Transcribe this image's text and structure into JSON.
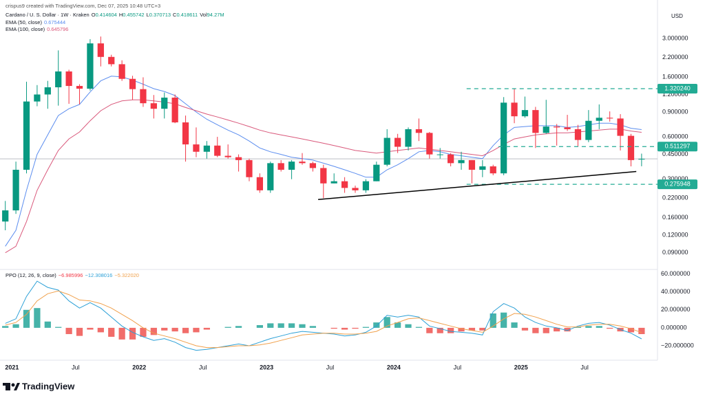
{
  "header": {
    "created": "crispus9 created with TradingView.com, Dec 07, 2025 10:48 UTC+3"
  },
  "footer": {
    "brand": "TradingView"
  },
  "chart_data": [
    {
      "type": "candlestick",
      "title": "Cardano / U. S. Dollar · 1W · Kraken",
      "ohlc_header": [
        {
          "label": "O",
          "value": "0.414604"
        },
        {
          "label": "H",
          "value": "0.455742"
        },
        {
          "label": "L",
          "value": "0.370713"
        },
        {
          "label": "C",
          "value": "0.418611"
        },
        {
          "label": "Vol",
          "value": "94.27M"
        }
      ],
      "y_axis_label": "USD",
      "log_scale": true,
      "grid": false,
      "up_color": "#089981",
      "down_color": "#f23645",
      "xlim": [
        "2020-12",
        "2026-02"
      ],
      "xticks": [
        {
          "value": "2021-01",
          "label": "2021"
        },
        {
          "value": "2021-07",
          "label": "Jul"
        },
        {
          "value": "2022-01",
          "label": "2022"
        },
        {
          "value": "2022-07",
          "label": "Jul"
        },
        {
          "value": "2023-01",
          "label": "2023"
        },
        {
          "value": "2023-07",
          "label": "Jul"
        },
        {
          "value": "2024-01",
          "label": "2024"
        },
        {
          "value": "2024-07",
          "label": "Jul"
        },
        {
          "value": "2025-01",
          "label": "2025"
        },
        {
          "value": "2025-07",
          "label": "Jul"
        }
      ],
      "ylim": [
        0.07,
        4.5
      ],
      "yticks": [
        {
          "value": 3.0,
          "label": "3.000000"
        },
        {
          "value": 2.2,
          "label": "2.200000"
        },
        {
          "value": 1.6,
          "label": "1.600000"
        },
        {
          "value": 1.2,
          "label": "1.200000"
        },
        {
          "value": 0.9,
          "label": "0.900000"
        },
        {
          "value": 0.6,
          "label": "0.600000"
        },
        {
          "value": 0.45,
          "label": "0.450000"
        },
        {
          "value": 0.3,
          "label": "0.300000"
        },
        {
          "value": 0.22,
          "label": "0.220000"
        },
        {
          "value": 0.16,
          "label": "0.160000"
        },
        {
          "value": 0.12,
          "label": "0.120000"
        },
        {
          "value": 0.09,
          "label": "0.090000"
        }
      ],
      "x": [
        "2020-12",
        "2021-01",
        "2021-02",
        "2021-03",
        "2021-04",
        "2021-05",
        "2021-06",
        "2021-07",
        "2021-08",
        "2021-09",
        "2021-10",
        "2021-11",
        "2021-12",
        "2022-01",
        "2022-02",
        "2022-03",
        "2022-04",
        "2022-05",
        "2022-06",
        "2022-07",
        "2022-08",
        "2022-09",
        "2022-10",
        "2022-11",
        "2022-12",
        "2023-01",
        "2023-02",
        "2023-03",
        "2023-04",
        "2023-05",
        "2023-06",
        "2023-07",
        "2023-08",
        "2023-09",
        "2023-10",
        "2023-11",
        "2023-12",
        "2024-01",
        "2024-02",
        "2024-03",
        "2024-04",
        "2024-05",
        "2024-06",
        "2024-07",
        "2024-08",
        "2024-09",
        "2024-10",
        "2024-11",
        "2024-12",
        "2025-01",
        "2025-02",
        "2025-03",
        "2025-04",
        "2025-05",
        "2025-06",
        "2025-07",
        "2025-08",
        "2025-09",
        "2025-10",
        "2025-11",
        "2025-12"
      ],
      "open": [
        0.15,
        0.18,
        0.35,
        1.07,
        1.2,
        1.35,
        1.75,
        1.38,
        1.32,
        2.77,
        2.22,
        1.97,
        1.55,
        1.31,
        1.04,
        0.95,
        1.14,
        0.76,
        0.53,
        0.47,
        0.52,
        0.44,
        0.43,
        0.41,
        0.31,
        0.25,
        0.39,
        0.35,
        0.4,
        0.39,
        0.36,
        0.28,
        0.29,
        0.26,
        0.25,
        0.29,
        0.38,
        0.59,
        0.51,
        0.68,
        0.64,
        0.45,
        0.45,
        0.39,
        0.41,
        0.35,
        0.37,
        0.33,
        1.05,
        0.84,
        0.93,
        0.64,
        0.71,
        0.7,
        0.68,
        0.57,
        0.78,
        0.82,
        0.81,
        0.61,
        0.414604
      ],
      "high": [
        0.21,
        0.4,
        1.48,
        1.4,
        1.5,
        2.47,
        1.8,
        1.42,
        2.97,
        3.1,
        2.3,
        2.1,
        1.63,
        1.59,
        1.19,
        1.24,
        1.2,
        0.85,
        0.7,
        0.56,
        0.6,
        0.53,
        0.45,
        0.42,
        0.33,
        0.4,
        0.41,
        0.41,
        0.46,
        0.4,
        0.38,
        0.33,
        0.31,
        0.27,
        0.3,
        0.4,
        0.68,
        0.63,
        0.7,
        0.81,
        0.65,
        0.5,
        0.46,
        0.47,
        0.41,
        0.41,
        0.38,
        1.15,
        1.32,
        1.16,
        0.98,
        1.1,
        0.74,
        0.86,
        0.73,
        0.93,
        1.02,
        0.91,
        0.87,
        0.63,
        0.455742
      ],
      "low": [
        0.13,
        0.17,
        0.33,
        0.99,
        0.95,
        1.0,
        1.03,
        1.02,
        1.28,
        1.9,
        1.9,
        1.5,
        1.1,
        0.98,
        0.81,
        0.81,
        0.75,
        0.4,
        0.43,
        0.42,
        0.43,
        0.42,
        0.34,
        0.29,
        0.24,
        0.24,
        0.34,
        0.3,
        0.38,
        0.34,
        0.22,
        0.28,
        0.24,
        0.24,
        0.24,
        0.29,
        0.37,
        0.46,
        0.48,
        0.56,
        0.42,
        0.42,
        0.37,
        0.35,
        0.28,
        0.31,
        0.32,
        0.32,
        0.75,
        0.82,
        0.5,
        0.63,
        0.52,
        0.66,
        0.51,
        0.55,
        0.68,
        0.77,
        0.48,
        0.37,
        0.370713
      ],
      "close": [
        0.18,
        0.35,
        1.07,
        1.2,
        1.35,
        1.75,
        1.38,
        1.32,
        2.77,
        2.22,
        1.97,
        1.55,
        1.31,
        1.04,
        0.95,
        1.14,
        0.76,
        0.53,
        0.47,
        0.52,
        0.44,
        0.43,
        0.41,
        0.31,
        0.25,
        0.39,
        0.35,
        0.4,
        0.39,
        0.36,
        0.28,
        0.29,
        0.26,
        0.25,
        0.29,
        0.38,
        0.59,
        0.51,
        0.68,
        0.64,
        0.45,
        0.45,
        0.39,
        0.41,
        0.35,
        0.37,
        0.33,
        1.05,
        0.84,
        0.93,
        0.64,
        0.71,
        0.7,
        0.68,
        0.57,
        0.78,
        0.82,
        0.81,
        0.61,
        0.41,
        0.418611
      ],
      "last_price": 0.418611,
      "last_price_color": "#9598a1",
      "overlays": [
        {
          "name": "EMA (50, close)",
          "last": "0.675444",
          "color": "#5b8def",
          "values": [
            0.1,
            0.13,
            0.25,
            0.45,
            0.62,
            0.85,
            0.95,
            1.02,
            1.25,
            1.5,
            1.62,
            1.6,
            1.52,
            1.42,
            1.32,
            1.26,
            1.18,
            1.03,
            0.9,
            0.8,
            0.73,
            0.67,
            0.62,
            0.56,
            0.5,
            0.47,
            0.45,
            0.43,
            0.42,
            0.41,
            0.39,
            0.37,
            0.35,
            0.33,
            0.31,
            0.31,
            0.35,
            0.38,
            0.42,
            0.47,
            0.48,
            0.47,
            0.45,
            0.44,
            0.43,
            0.42,
            0.52,
            0.62,
            0.7,
            0.71,
            0.72,
            0.72,
            0.72,
            0.7,
            0.71,
            0.73,
            0.75,
            0.75,
            0.73,
            0.69,
            0.675444
          ]
        },
        {
          "name": "EMA (100, close)",
          "last": "0.645796",
          "color": "#d9577a",
          "values": [
            0.09,
            0.1,
            0.15,
            0.25,
            0.35,
            0.48,
            0.58,
            0.65,
            0.78,
            0.92,
            1.02,
            1.08,
            1.1,
            1.1,
            1.08,
            1.06,
            1.03,
            0.97,
            0.92,
            0.87,
            0.83,
            0.79,
            0.75,
            0.71,
            0.67,
            0.64,
            0.62,
            0.6,
            0.58,
            0.56,
            0.54,
            0.52,
            0.5,
            0.48,
            0.47,
            0.46,
            0.47,
            0.48,
            0.49,
            0.5,
            0.49,
            0.48,
            0.47,
            0.46,
            0.45,
            0.44,
            0.48,
            0.53,
            0.58,
            0.6,
            0.62,
            0.63,
            0.64,
            0.64,
            0.65,
            0.66,
            0.67,
            0.68,
            0.68,
            0.66,
            0.645796
          ]
        }
      ],
      "levels": [
        {
          "value": 1.32024,
          "label": "1.320240",
          "start": "2024-08",
          "color": "#22ab94"
        },
        {
          "value": 0.511297,
          "label": "0.511297",
          "start": "2024-11",
          "color": "#22ab94"
        },
        {
          "value": 0.275948,
          "label": "0.275948",
          "start": "2024-08",
          "color": "#22ab94"
        }
      ],
      "trendline": {
        "x": [
          "2023-06",
          "2025-12"
        ],
        "values": [
          0.215,
          0.34
        ],
        "color": "#000000"
      }
    },
    {
      "type": "ppo",
      "title": "PPO (12, 26, 9, close)",
      "grid": false,
      "ylim": [
        -33,
        65
      ],
      "yticks": [
        {
          "value": 60,
          "label": "60.000000"
        },
        {
          "value": 40,
          "label": "40.000000"
        },
        {
          "value": 20,
          "label": "20.000000"
        },
        {
          "value": 0,
          "label": "0.000000"
        },
        {
          "value": -20,
          "label": "−20.000000"
        }
      ],
      "histogram": {
        "last": "−6.985996",
        "color": "#f23645",
        "up_color": "#26a69a",
        "down_color": "#ef5350",
        "values": [
          2,
          4,
          20,
          22,
          7,
          1,
          -7,
          -9,
          -2,
          -5,
          -10,
          -13,
          -13,
          -10,
          -8,
          -3,
          -4,
          -6,
          -5,
          -2,
          0,
          1,
          2,
          0,
          3,
          5,
          5,
          5,
          4,
          2,
          0,
          -1,
          -2,
          -1,
          1,
          6,
          12,
          6,
          4,
          1,
          -6,
          -6,
          -6,
          -4,
          -3,
          -3,
          16,
          17,
          6,
          -3,
          -6,
          -6,
          -4,
          -4,
          1,
          2,
          2,
          -1,
          -4,
          -5,
          -6.985996
        ]
      },
      "ppo_line": {
        "last": "−12.308016",
        "color": "#2a9fd6",
        "values": [
          5,
          10,
          35,
          52,
          45,
          42,
          30,
          22,
          28,
          22,
          12,
          2,
          -5,
          -10,
          -14,
          -12,
          -16,
          -22,
          -25,
          -24,
          -22,
          -20,
          -18,
          -20,
          -16,
          -12,
          -9,
          -6,
          -4,
          -5,
          -6,
          -7,
          -9,
          -8,
          -5,
          2,
          14,
          12,
          14,
          12,
          2,
          -1,
          -4,
          -5,
          -6,
          -8,
          18,
          27,
          22,
          12,
          6,
          2,
          0,
          -3,
          2,
          5,
          6,
          3,
          -2,
          -6,
          -12.308016
        ]
      },
      "signal_line": {
        "last": "−5.322020",
        "color": "#f0a04b",
        "values": [
          3,
          6,
          15,
          30,
          38,
          41,
          37,
          31,
          30,
          27,
          22,
          15,
          8,
          0,
          -6,
          -9,
          -12,
          -16,
          -20,
          -22,
          -22,
          -21,
          -20,
          -20,
          -19,
          -17,
          -14,
          -11,
          -8,
          -7,
          -6,
          -6,
          -7,
          -7,
          -6,
          -4,
          2,
          6,
          10,
          11,
          8,
          5,
          2,
          -1,
          -3,
          -5,
          2,
          10,
          16,
          15,
          12,
          8,
          4,
          1,
          1,
          3,
          4,
          4,
          2,
          -1,
          -5.32202
        ]
      }
    }
  ]
}
